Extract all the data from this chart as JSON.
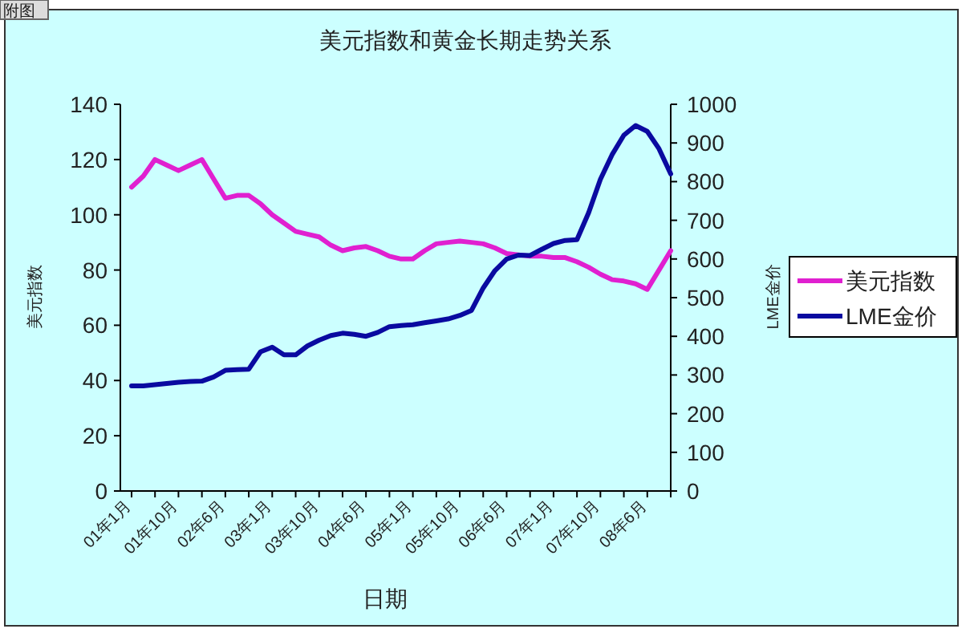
{
  "chart_data": {
    "type": "line",
    "title": "美元指数和黄金长期走势关系",
    "xlabel": "日期",
    "ylabel": "美元指数",
    "y2label": "LME金价",
    "annotations": [
      "附图"
    ],
    "categories": [
      "01年1月",
      null,
      null,
      null,
      "01年10月",
      null,
      null,
      null,
      "02年6月",
      null,
      null,
      null,
      "03年1月",
      null,
      null,
      null,
      "03年10月",
      null,
      null,
      null,
      "04年6月",
      null,
      null,
      null,
      "05年1月",
      null,
      null,
      null,
      "05年10月",
      null,
      null,
      null,
      "06年6月",
      null,
      null,
      null,
      "07年1月",
      null,
      null,
      null,
      "07年10月",
      null,
      null,
      null,
      "08年6月",
      null,
      null
    ],
    "series": [
      {
        "name": "美元指数",
        "color": "#e020d0",
        "values": [
          110,
          114,
          120,
          118,
          116,
          118,
          120,
          113,
          106,
          107,
          107,
          104,
          100,
          97,
          94,
          93,
          92,
          89,
          87,
          88,
          88.5,
          87,
          85,
          84,
          84,
          87,
          89.5,
          90,
          90.5,
          90,
          89.5,
          88,
          86,
          85.5,
          85,
          85,
          84.5,
          84.5,
          83,
          81,
          78.5,
          76.5,
          76,
          75,
          73,
          80,
          87
        ]
      },
      {
        "name": "LME金价",
        "color": "#0a0aa0",
        "axis": "y2",
        "values": [
          272,
          272,
          275,
          278,
          281,
          283,
          284,
          295,
          312,
          314,
          315,
          360,
          372,
          352,
          352,
          375,
          390,
          402,
          408,
          405,
          400,
          410,
          425,
          428,
          430,
          435,
          440,
          445,
          454,
          467,
          525,
          570,
          600,
          610,
          609,
          625,
          640,
          648,
          650,
          720,
          806,
          870,
          920,
          945,
          930,
          885,
          820
        ]
      }
    ],
    "ylim": [
      0,
      140
    ],
    "yticks": [
      0,
      20,
      40,
      60,
      80,
      100,
      120,
      140
    ],
    "y2lim": [
      0,
      1000
    ],
    "y2ticks": [
      0,
      100,
      200,
      300,
      400,
      500,
      600,
      700,
      800,
      900,
      1000
    ],
    "grid": false,
    "legend": "right",
    "marker": "none",
    "line_style": "solid"
  }
}
